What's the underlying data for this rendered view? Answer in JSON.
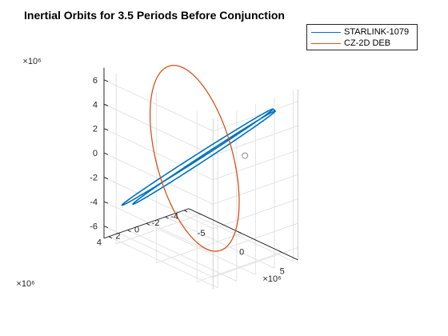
{
  "chart_data": {
    "type": "line",
    "title": "Inertial Orbits for 3.5 Periods Before Conjunction",
    "x_scale": "×10⁶",
    "y_scale": "×10⁶",
    "z_scale": "×10⁶",
    "x_ticks": [
      "-5",
      "0",
      "5"
    ],
    "y_ticks": [
      "4",
      "2",
      "0",
      "-2",
      "-4"
    ],
    "z_ticks": [
      "6",
      "4",
      "2",
      "0",
      "-2",
      "-4",
      "-6"
    ],
    "xlim": [
      -6.5,
      7.0
    ],
    "ylim": [
      -4.5,
      4.5
    ],
    "zlim": [
      -7.0,
      7.0
    ],
    "grid": true,
    "legend_position": "top-right outside",
    "series": [
      {
        "name": "STARLINK-1079",
        "color": "#0072BD",
        "points": [
          [
            -6.5,
            2.6,
            -4.8
          ],
          [
            5.55,
            -3.1,
            5.3
          ],
          [
            -5.68,
            2.14,
            -4.58
          ],
          [
            6.38,
            -2.64,
            5.52
          ],
          [
            -6.5,
            2.6,
            -4.8
          ],
          [
            5.55,
            -3.1,
            5.3
          ],
          [
            -5.68,
            2.14,
            -4.58
          ],
          [
            6.38,
            -2.64,
            5.52
          ]
        ]
      },
      {
        "name": "CZ-2D DEB",
        "color": "#D95319",
        "points": [
          [
            4.29,
            -1.15,
            1.53
          ],
          [
            -0.87,
            0.22,
            7.24
          ],
          [
            -4.4,
            1.38,
            2.2
          ],
          [
            -5.09,
            0.8,
            -2.2
          ],
          [
            -2.32,
            -0.18,
            -6.68
          ],
          [
            2.4,
            -1.1,
            -5.8
          ],
          [
            4.29,
            -1.15,
            1.53
          ]
        ]
      }
    ],
    "markers": [
      {
        "shape": "circle",
        "x": 4.3,
        "y": -1.2,
        "z": 1.6
      }
    ]
  }
}
